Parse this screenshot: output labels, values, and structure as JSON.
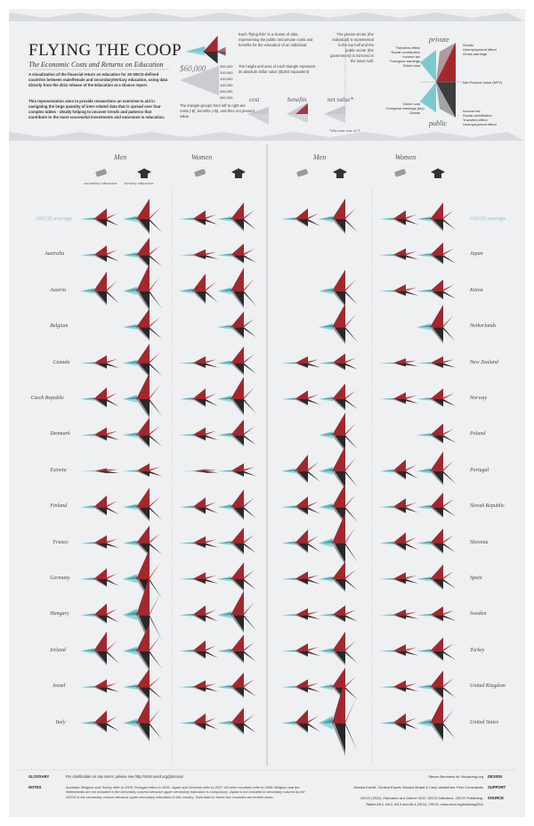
{
  "header": {
    "title": "FLYING THE COOP",
    "subtitle": "The Economic Costs and Returns on Education",
    "intro_1": "A visualization of the financial return on education for 26 OECD-defined countries between male/female and secondary/tertiary education, using data directly from the 2011 release of the Education at a Glance report.",
    "intro_2": "This representation aims to provide researchers an overview to aid in navigating the large quantity of inter-related data that is spread over four complex tables - ideally helping to uncover trends and patterns that contribute to the most successful investments and outcomes in education."
  },
  "legend": {
    "note_fish": "Each \"flying-fish\" is a cluster of data representing the public and private costs and benefits for the education of an individual.",
    "note_area": "The height and area of each triangle represent its absolute dollar value ($USD equivalent)",
    "note_groups": "The triangle-groups from left to right are costs (-$), benefits (+$), and then net present value.",
    "note_sector": "The private sector (the individual) is represented in the top half and the public sector (the government) is mirrored in the lower half.",
    "scale_value": "$60,000",
    "scale_ticks": [
      "300,000",
      "200,000",
      "100,000",
      "100,000",
      "200,000",
      "300,000"
    ],
    "cost": "cost",
    "benefits": "benefits",
    "net_value": "net value*",
    "net_footnote": "*discount rate of 3",
    "private": "private",
    "public": "public",
    "net_present_value": "Net Present Value (NPV)",
    "private_left": [
      "Transfers effect",
      "Social contribution",
      "Income tax",
      "Foregone earnings",
      "Direct cost"
    ],
    "private_right": [
      "Grants",
      "Unemployment effect",
      "Gross earnings"
    ],
    "public_left": [
      "Direct cost",
      "Foregone earnings (tax)",
      "Grants"
    ],
    "public_right": [
      "Income tax",
      "Social contribution",
      "Transfers effect",
      "Unemployment effect"
    ]
  },
  "columns": {
    "men": "Men",
    "women": "Women",
    "secondary": "secondary education",
    "tertiary": "tertiary education"
  },
  "colors": {
    "teal": "#5fc1c7",
    "red": "#a3282e",
    "black": "#1c1c1c",
    "grey": "#c5c8cc",
    "panel": "#eef0f2"
  },
  "chart_data": {
    "type": "scatter",
    "description_series": [
      "men-secondary",
      "men-tertiary",
      "women-secondary",
      "women-tertiary"
    ],
    "left_countries": [
      "OECD average",
      "Australia",
      "Austria",
      "Belgium",
      "Canada",
      "Czech Republic",
      "Denmark",
      "Estonia",
      "Finland",
      "France",
      "Germany",
      "Hungary",
      "Ireland",
      "Israel",
      "Italy"
    ],
    "right_countries": [
      "OECD average",
      "Japan",
      "Korea",
      "Netherlands",
      "New Zealand",
      "Norway",
      "Poland",
      "Portugal",
      "Slovak Republic",
      "Slovenia",
      "Spain",
      "Sweden",
      "Turkey",
      "United Kingdom",
      "United States"
    ],
    "left_values": [
      [
        0.55,
        1.05,
        0.45,
        0.85
      ],
      [
        0.5,
        0.9,
        0.3,
        0.6
      ],
      [
        1.0,
        1.4,
        0.9,
        1.2
      ],
      [
        0,
        0.95,
        0,
        0.8
      ],
      [
        0.4,
        1.0,
        0.35,
        0.85
      ],
      [
        0.6,
        1.35,
        0.55,
        1.15
      ],
      [
        0.4,
        0.9,
        0.4,
        0.8
      ],
      [
        0.15,
        0.4,
        0.1,
        0.4
      ],
      [
        0.6,
        1.0,
        0.5,
        0.9
      ],
      [
        0.4,
        0.9,
        0.35,
        0.8
      ],
      [
        0.55,
        1.55,
        0.35,
        0.85
      ],
      [
        0.6,
        2.0,
        0.5,
        1.25
      ],
      [
        1.0,
        1.4,
        0.55,
        0.85
      ],
      [
        0.4,
        0.95,
        0.35,
        0.75
      ],
      [
        0.65,
        1.3,
        0.5,
        0.8
      ]
    ],
    "right_values": [
      [
        0.55,
        1.05,
        0.45,
        0.85
      ],
      [
        0,
        0,
        0.35,
        0.65
      ],
      [
        0,
        1.1,
        0.35,
        0.6
      ],
      [
        0,
        1.2,
        0,
        1.15
      ],
      [
        0.35,
        0.5,
        0.25,
        0.35
      ],
      [
        0.45,
        0.8,
        0.35,
        0.55
      ],
      [
        0,
        1.15,
        0,
        0.6
      ],
      [
        0.85,
        1.3,
        0.6,
        1.0
      ],
      [
        0.55,
        1.2,
        0.45,
        0.75
      ],
      [
        0.7,
        1.55,
        0.55,
        0.75
      ],
      [
        0.4,
        0.9,
        0.35,
        0.75
      ],
      [
        0.35,
        0.5,
        0.3,
        0.45
      ],
      [
        0.4,
        1.0,
        0.35,
        0.7
      ],
      [
        0.4,
        1.0,
        0.35,
        0.85
      ],
      [
        0.7,
        2.3,
        0.5,
        1.3
      ]
    ]
  },
  "footer": {
    "glossary_label": "GLOSSARY",
    "glossary_text": "For clarification on any terms, please see http://stats.oecd.org/glossary/",
    "notes_label": "NOTES",
    "notes_text": "Australia, Belgium and Turkey refer to 2005; Portugal refers to 2006, Japan and Slovenia refer to 2007. All other countries refer to 2008. Belgium and the Netherlands are not included in the secondary column because upper secondary education is compulsory. Japan is not included in secondary column by the OECD in the secondary column because upper secondary education in this country. Total data for these two countries are broken down.",
    "credit_design": "Steven Bernstein for Visualizing.org",
    "credit_design_label": "DESIGN",
    "credit_support": "Monika Krenfli, Content Expert; Monika Musial & Carly Vanderhee, Peer Consultants",
    "credit_support_label": "SUPPORT",
    "credit_source": "OECD (2011), Education at a Glance 2011: OECD Indicators, OECD Publishing.",
    "credit_source_2": "Tables A8.1, A8.2, A8.3 and A8.4 (2011), OECD, www.oecd.org/edu/eag2011",
    "credit_source_label": "SOURCE"
  }
}
